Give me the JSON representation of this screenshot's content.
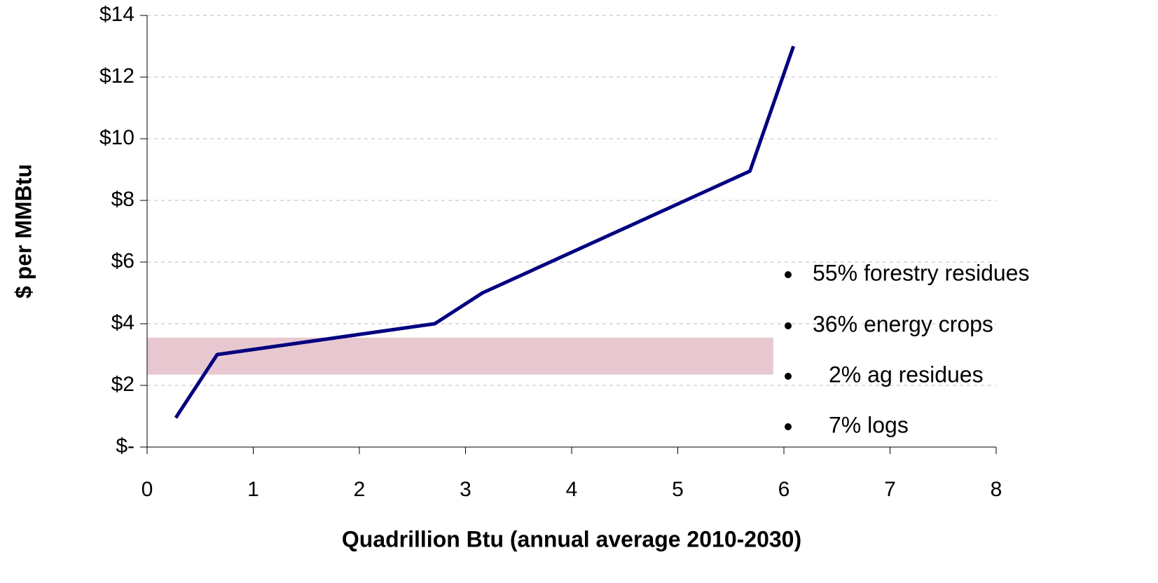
{
  "chart_data": {
    "type": "line",
    "x_label": "Quadrillion Btu (annual average 2010-2030)",
    "y_label": "$ per MMBtu",
    "x": [
      0.27,
      0.66,
      2.71,
      3.16,
      5.68,
      6.09
    ],
    "series": [
      {
        "color": "#000080",
        "values": [
          0.95,
          3.0,
          4.0,
          5.0,
          8.95,
          13.0
        ]
      }
    ],
    "xlim": [
      0,
      8
    ],
    "xticks": [
      0,
      1,
      2,
      3,
      4,
      5,
      6,
      7,
      8
    ],
    "ylim": [
      0,
      14
    ],
    "yticks": [
      {
        "value": 0,
        "label": "$-"
      },
      {
        "value": 2,
        "label": "$2"
      },
      {
        "value": 4,
        "label": "$4"
      },
      {
        "value": 6,
        "label": "$6"
      },
      {
        "value": 8,
        "label": "$8"
      },
      {
        "value": 10,
        "label": "$10"
      },
      {
        "value": 12,
        "label": "$12"
      },
      {
        "value": 14,
        "label": "$14"
      }
    ],
    "grid": true,
    "band": {
      "x": [
        0,
        5.9
      ],
      "y": [
        2.35,
        3.55
      ],
      "color": "#e8c8d0"
    },
    "annotations": [
      "55% forestry residues",
      "36% energy crops",
      "2% ag residues",
      "7% logs"
    ]
  }
}
